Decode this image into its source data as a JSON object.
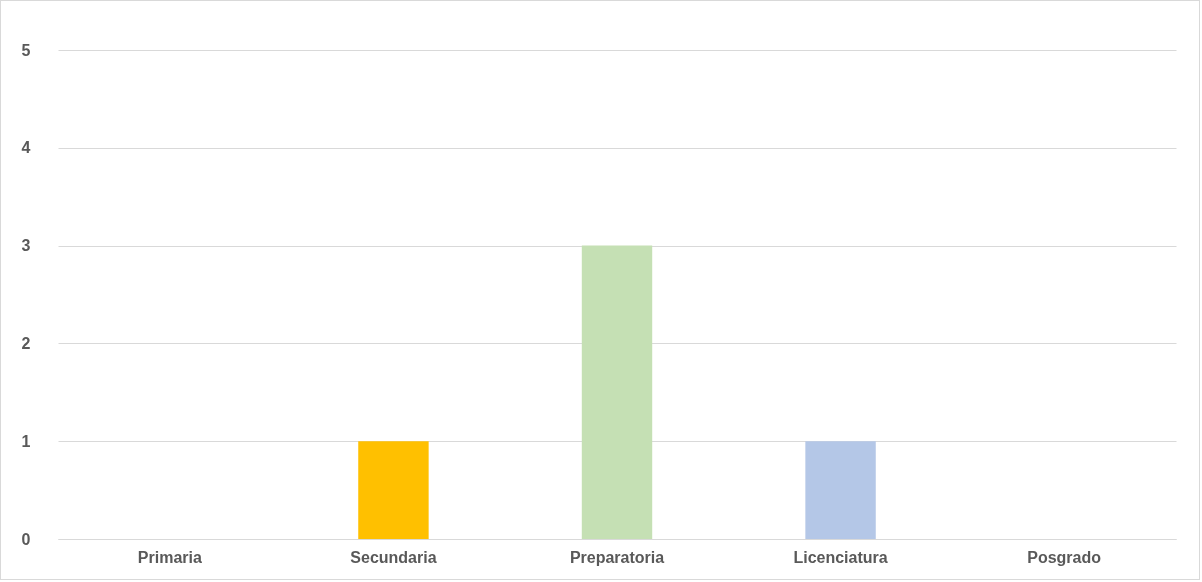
{
  "chart_data": {
    "type": "bar",
    "categories": [
      "Primaria",
      "Secundaria",
      "Preparatoria",
      "Licenciatura",
      "Posgrado"
    ],
    "values": [
      0,
      1,
      3,
      1,
      0
    ],
    "colors": [
      "#5b9bd5",
      "#ffc000",
      "#c5e0b4",
      "#b4c7e7",
      "#a9d18e"
    ],
    "ylim": [
      0,
      5
    ],
    "yticks": [
      0,
      1,
      2,
      3,
      4,
      5
    ],
    "grid": "y",
    "legend": false
  }
}
